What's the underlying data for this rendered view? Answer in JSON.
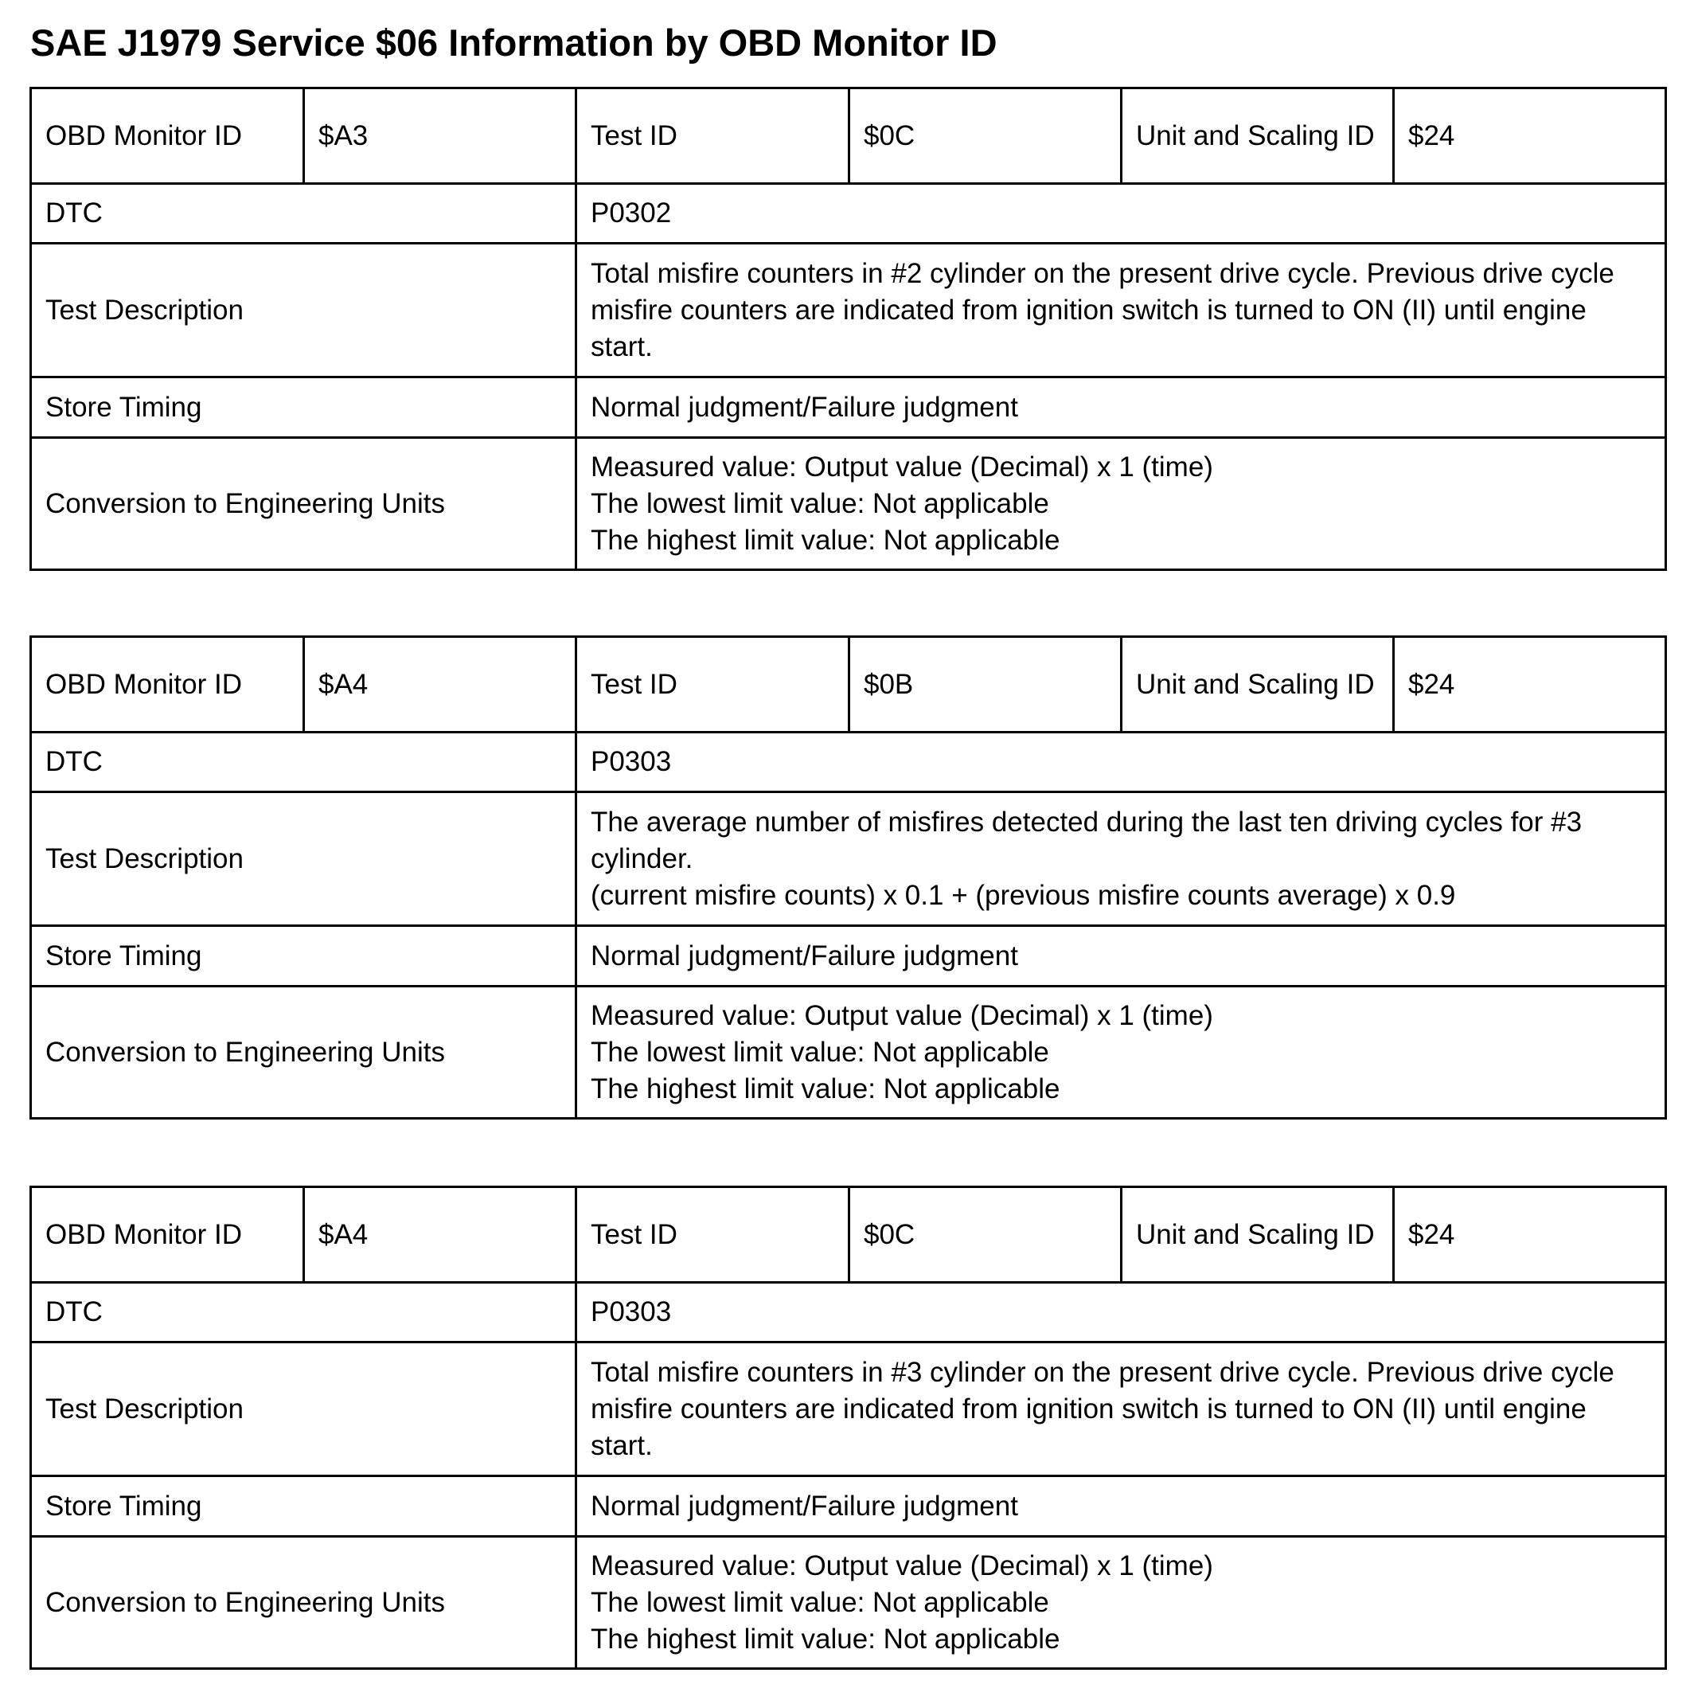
{
  "title": "SAE J1979 Service $06 Information by OBD Monitor ID",
  "labels": {
    "obd_monitor_id": "OBD Monitor ID",
    "test_id": "Test ID",
    "unit_scaling_id": "Unit and Scaling ID",
    "dtc": "DTC",
    "test_description": "Test Description",
    "store_timing": "Store Timing",
    "conversion": "Conversion to Engineering Units"
  },
  "tables": [
    {
      "obd_monitor_id": "$A3",
      "test_id": "$0C",
      "unit_scaling_id": "$24",
      "dtc": "P0302",
      "test_description": "Total misfire counters in #2 cylinder on the present drive cycle. Previous drive cycle misfire counters are indicated from ignition switch is turned to ON (II) until engine start.",
      "store_timing": "Normal judgment/Failure judgment",
      "conversion": [
        "Measured value: Output value (Decimal) x 1 (time)",
        "The lowest limit value: Not applicable",
        "The highest limit value: Not applicable"
      ]
    },
    {
      "obd_monitor_id": "$A4",
      "test_id": "$0B",
      "unit_scaling_id": "$24",
      "dtc": "P0303",
      "test_description_lines": [
        "The average number of misfires detected during the last ten driving cycles for #3 cylinder.",
        "(current misfire counts) x 0.1 + (previous misfire counts average) x 0.9"
      ],
      "store_timing": "Normal judgment/Failure judgment",
      "conversion": [
        "Measured value: Output value (Decimal) x 1 (time)",
        "The lowest limit value: Not applicable",
        "The highest limit value: Not applicable"
      ]
    },
    {
      "obd_monitor_id": "$A4",
      "test_id": "$0C",
      "unit_scaling_id": "$24",
      "dtc": "P0303",
      "test_description": "Total misfire counters in #3 cylinder on the present drive cycle. Previous drive cycle misfire counters are indicated from ignition switch is turned to ON (II) until engine start.",
      "store_timing": "Normal judgment/Failure judgment",
      "conversion": [
        "Measured value: Output value (Decimal) x 1 (time)",
        "The lowest limit value: Not applicable",
        "The highest limit value: Not applicable"
      ]
    }
  ]
}
